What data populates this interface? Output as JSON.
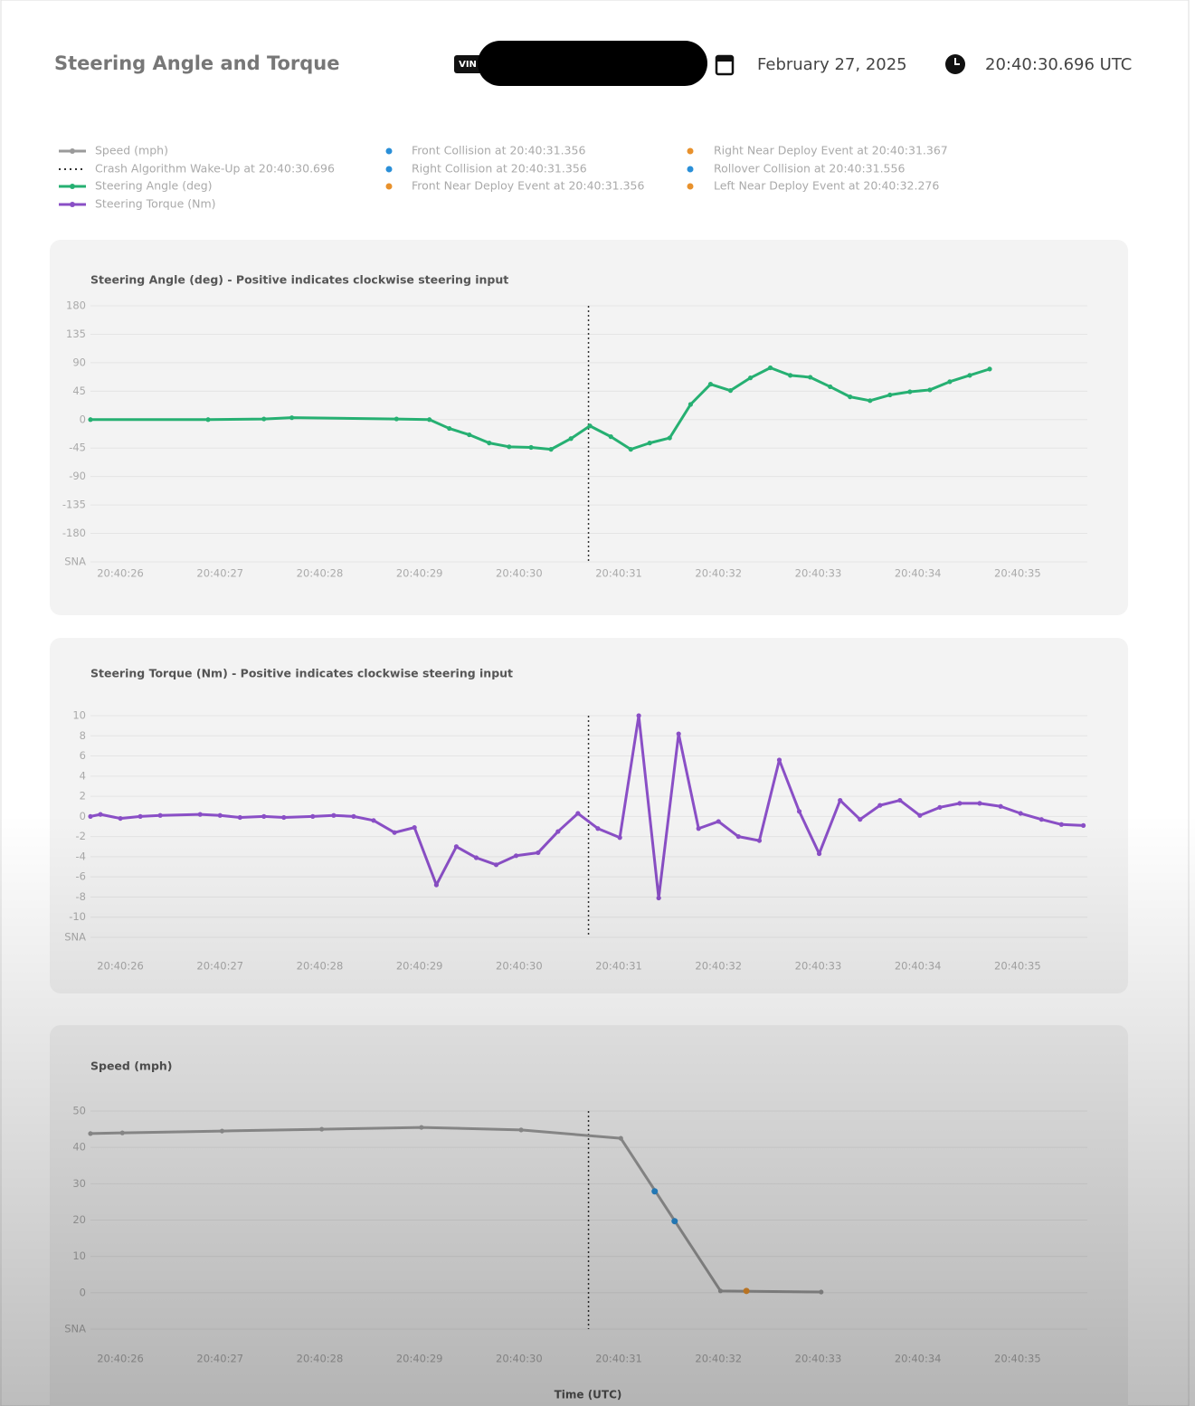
{
  "header": {
    "title": "Steering Angle and Torque",
    "vin_label": "VIN",
    "date": "February 27, 2025",
    "time": "20:40:30.696 UTC"
  },
  "legend": [
    {
      "label": "Speed (mph)",
      "color": "#9a9a9a",
      "kind": "line"
    },
    {
      "label": "Crash Algorithm Wake-Up at 20:40:30.696",
      "color": "#333333",
      "kind": "dotted"
    },
    {
      "label": "Steering Angle (deg)",
      "color": "#26b072",
      "kind": "line"
    },
    {
      "label": "Steering Torque (Nm)",
      "color": "#8a4fc6",
      "kind": "line"
    },
    {
      "label": "Front Collision at 20:40:31.356",
      "color": "#2a8fd8",
      "kind": "dot"
    },
    {
      "label": "Right Collision at 20:40:31.356",
      "color": "#2a8fd8",
      "kind": "dot"
    },
    {
      "label": "Front Near Deploy Event at 20:40:31.356",
      "color": "#e8912c",
      "kind": "dot"
    },
    {
      "label": "Right Near Deploy Event at 20:40:31.367",
      "color": "#e8912c",
      "kind": "dot"
    },
    {
      "label": "Rollover Collision at 20:40:31.556",
      "color": "#2a8fd8",
      "kind": "dot"
    },
    {
      "label": "Left Near Deploy Event at 20:40:32.276",
      "color": "#e8912c",
      "kind": "dot"
    }
  ],
  "x_axis_label": "Time (UTC)",
  "chart_data": [
    {
      "type": "line",
      "title": "Steering Angle (deg) - Positive indicates clockwise steering input",
      "x": [
        25.7,
        26.88,
        27.44,
        27.72,
        28.77,
        29.1,
        29.3,
        29.5,
        29.7,
        29.9,
        30.12,
        30.32,
        30.52,
        30.71,
        30.92,
        31.12,
        31.31,
        31.51,
        31.72,
        31.92,
        32.12,
        32.32,
        32.52,
        32.72,
        32.92,
        33.12,
        33.32,
        33.52,
        33.72,
        33.92,
        34.12,
        34.32,
        34.52,
        34.72
      ],
      "values": [
        0,
        0,
        1,
        3,
        1,
        0,
        -14,
        -24,
        -37,
        -43,
        -44,
        -47,
        -30,
        -10,
        -27,
        -47,
        -37,
        -29,
        24,
        56,
        46,
        66,
        82,
        70,
        67,
        52,
        36,
        30,
        39,
        44,
        47,
        60,
        70,
        80
      ],
      "color": "#26b072",
      "xlim": [
        25.7,
        35.7
      ],
      "ylim": [
        -225,
        180
      ],
      "xticks": [
        {
          "value": 26,
          "label": "20:40:26"
        },
        {
          "value": 27,
          "label": "20:40:27"
        },
        {
          "value": 28,
          "label": "20:40:28"
        },
        {
          "value": 29,
          "label": "20:40:29"
        },
        {
          "value": 30,
          "label": "20:40:30"
        },
        {
          "value": 31,
          "label": "20:40:31"
        },
        {
          "value": 32,
          "label": "20:40:32"
        },
        {
          "value": 33,
          "label": "20:40:33"
        },
        {
          "value": 34,
          "label": "20:40:34"
        },
        {
          "value": 35,
          "label": "20:40:35"
        }
      ],
      "yticks": [
        180,
        135,
        90,
        45,
        0,
        -45,
        -90,
        -135,
        -180,
        {
          "value": -225,
          "label": "SNA"
        }
      ],
      "grid": true,
      "wakeup_x": 30.696
    },
    {
      "type": "line",
      "title": "Steering Torque (Nm) - Positive indicates clockwise steering input",
      "x": [
        25.7,
        25.8,
        26,
        26.2,
        26.4,
        26.8,
        27,
        27.2,
        27.44,
        27.64,
        27.93,
        28.14,
        28.34,
        28.54,
        28.75,
        28.95,
        29.17,
        29.37,
        29.57,
        29.77,
        29.97,
        30.19,
        30.39,
        30.59,
        30.79,
        31.01,
        31.2,
        31.4,
        31.6,
        31.8,
        32.0,
        32.2,
        32.41,
        32.61,
        32.81,
        33.01,
        33.22,
        33.42,
        33.62,
        33.82,
        34.02,
        34.22,
        34.42,
        34.62,
        34.83,
        35.03,
        35.24,
        35.44,
        35.66
      ],
      "values": [
        0,
        0.2,
        -0.2,
        0,
        0.1,
        0.2,
        0.1,
        -0.1,
        0,
        -0.1,
        0,
        0.1,
        0,
        -0.4,
        -1.6,
        -1.1,
        -6.8,
        -3,
        -4.1,
        -4.8,
        -3.9,
        -3.6,
        -1.5,
        0.3,
        -1.2,
        -2.1,
        10,
        -8.1,
        8.2,
        -1.2,
        -0.5,
        -2,
        -2.4,
        5.6,
        0.5,
        -3.7,
        1.6,
        -0.3,
        1.1,
        1.6,
        0.1,
        0.9,
        1.3,
        1.3,
        1,
        0.3,
        -0.3,
        -0.8,
        -0.9
      ],
      "color": "#8a4fc6",
      "xlim": [
        25.7,
        35.7
      ],
      "ylim": [
        -12,
        10
      ],
      "xticks": [
        {
          "value": 26,
          "label": "20:40:26"
        },
        {
          "value": 27,
          "label": "20:40:27"
        },
        {
          "value": 28,
          "label": "20:40:28"
        },
        {
          "value": 29,
          "label": "20:40:29"
        },
        {
          "value": 30,
          "label": "20:40:30"
        },
        {
          "value": 31,
          "label": "20:40:31"
        },
        {
          "value": 32,
          "label": "20:40:32"
        },
        {
          "value": 33,
          "label": "20:40:33"
        },
        {
          "value": 34,
          "label": "20:40:34"
        },
        {
          "value": 35,
          "label": "20:40:35"
        }
      ],
      "yticks": [
        10,
        8,
        6,
        4,
        2,
        0,
        -2,
        -4,
        -6,
        -8,
        -10,
        {
          "value": -12,
          "label": "SNA"
        }
      ],
      "grid": true,
      "wakeup_x": 30.696
    },
    {
      "type": "line",
      "title": "Speed (mph)",
      "x": [
        25.7,
        26.02,
        27.02,
        28.02,
        29.02,
        30.02,
        31.02,
        32.02,
        33.03
      ],
      "values": [
        43.8,
        44,
        44.5,
        45,
        45.5,
        44.8,
        42.5,
        0.5,
        0.2
      ],
      "color": "#9a9a9a",
      "xlim": [
        25.7,
        35.7
      ],
      "ylim": [
        -10,
        50
      ],
      "xticks": [
        {
          "value": 26,
          "label": "20:40:26"
        },
        {
          "value": 27,
          "label": "20:40:27"
        },
        {
          "value": 28,
          "label": "20:40:28"
        },
        {
          "value": 29,
          "label": "20:40:29"
        },
        {
          "value": 30,
          "label": "20:40:30"
        },
        {
          "value": 31,
          "label": "20:40:31"
        },
        {
          "value": 32,
          "label": "20:40:32"
        },
        {
          "value": 33,
          "label": "20:40:33"
        },
        {
          "value": 34,
          "label": "20:40:34"
        },
        {
          "value": 35,
          "label": "20:40:35"
        }
      ],
      "yticks": [
        50,
        40,
        30,
        20,
        10,
        0,
        {
          "value": -10,
          "label": "SNA"
        }
      ],
      "grid": true,
      "wakeup_x": 30.696,
      "events": {
        "x": [
          31.36,
          31.56,
          32.28
        ],
        "values": [
          27.9,
          19.7,
          0.5
        ],
        "colors": [
          "#2a8fd8",
          "#2a8fd8",
          "#e8912c"
        ]
      }
    }
  ]
}
